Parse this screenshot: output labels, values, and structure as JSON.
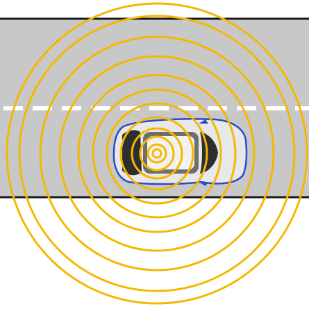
{
  "colors": {
    "background": "#ffffff",
    "road": "#c8c8c8",
    "road_edge": "#1a1a1a",
    "lane_marking": "#ffffff",
    "signal_ring": "#f5b800",
    "car_body": "#e8e8e8",
    "car_glass": "#2e2e2e",
    "car_outline": "#2b4bc8"
  },
  "icons": {
    "vehicle": "car-topdown-icon",
    "signal": "radio-wave-rings-icon"
  },
  "signal": {
    "ring_count": 10
  }
}
